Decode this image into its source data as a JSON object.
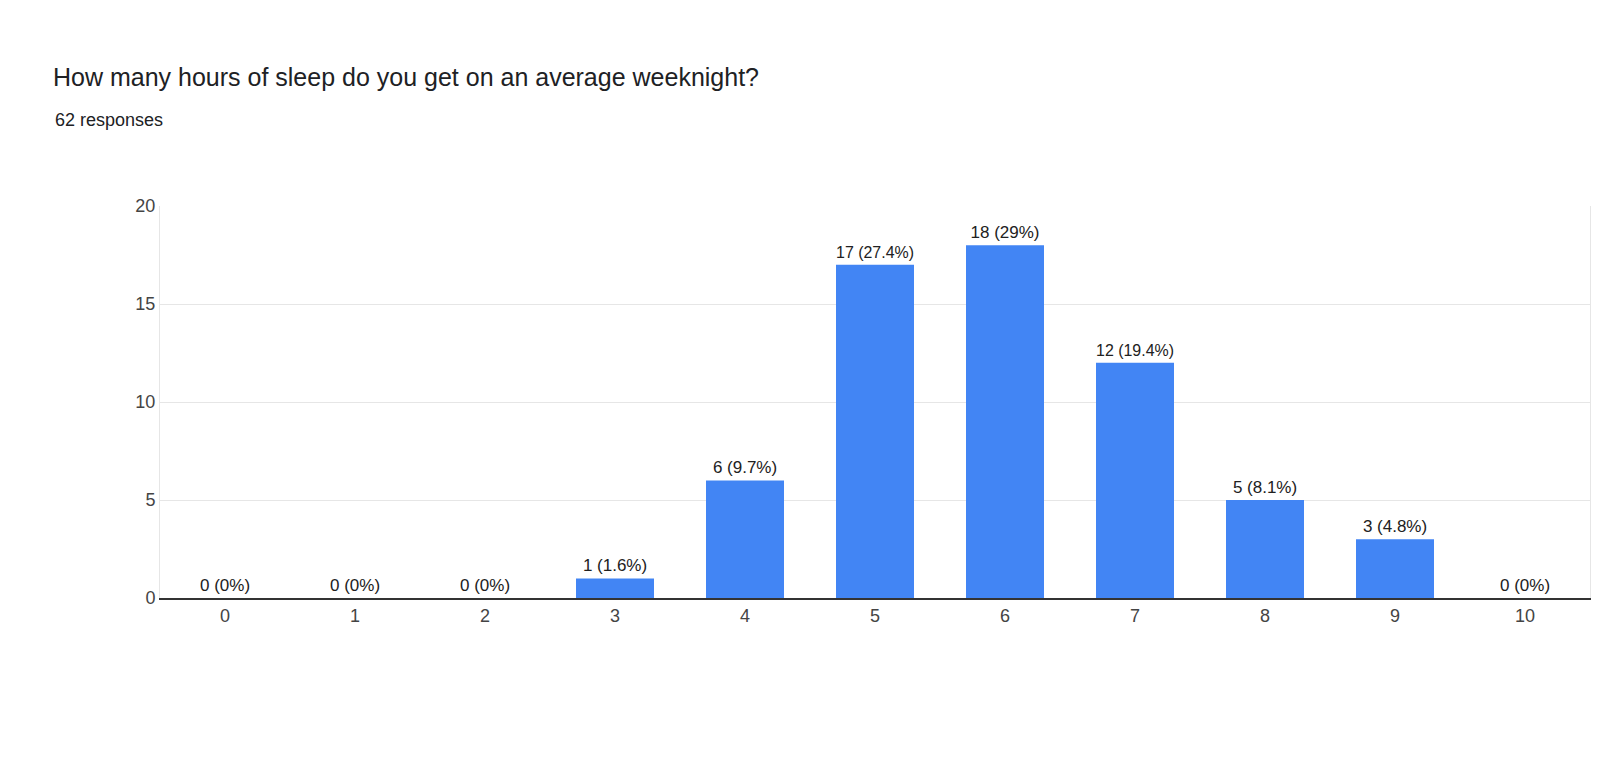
{
  "chart_data": {
    "type": "bar",
    "title": "How many hours of sleep do you get on an average weeknight?",
    "subtitle": "62 responses",
    "categories": [
      "0",
      "1",
      "2",
      "3",
      "4",
      "5",
      "6",
      "7",
      "8",
      "9",
      "10"
    ],
    "values": [
      0,
      0,
      0,
      1,
      6,
      17,
      18,
      12,
      5,
      3,
      0
    ],
    "value_labels": [
      "0 (0%)",
      "0 (0%)",
      "0 (0%)",
      "1 (1.6%)",
      "6 (9.7%)",
      "17 (27.4%)",
      "18 (29%)",
      "12 (19.4%)",
      "5 (8.1%)",
      "3 (4.8%)",
      "0 (0%)"
    ],
    "color": "#4285f4",
    "ylim": [
      0,
      20
    ],
    "yticks": [
      0,
      5,
      10,
      15,
      20
    ],
    "grid": true,
    "data_labels": true
  }
}
